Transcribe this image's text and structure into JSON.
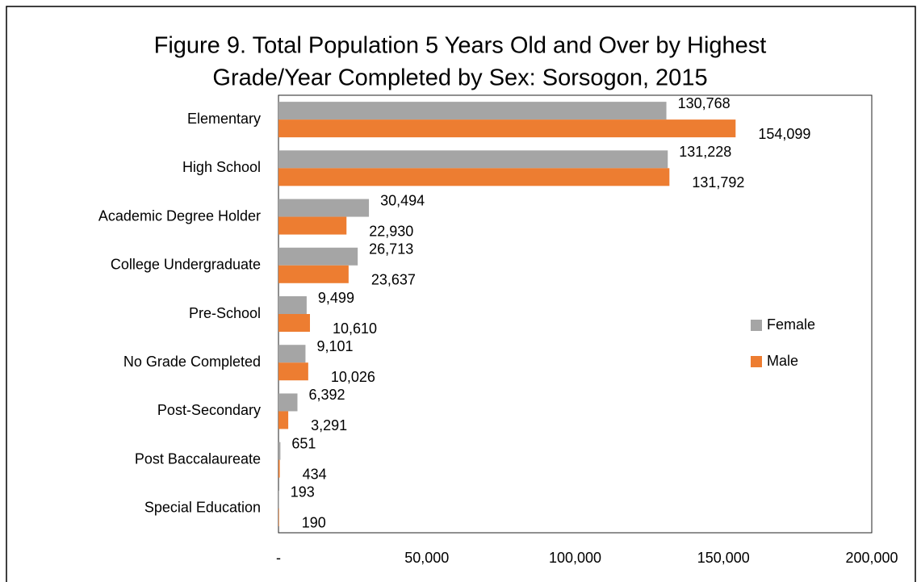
{
  "chart_data": {
    "type": "bar",
    "orientation": "horizontal",
    "title": [
      "Figure 9. Total Population 5 Years Old and Over by Highest",
      "Grade/Year Completed by Sex: Sorsogon, 2015"
    ],
    "categories": [
      "Elementary",
      "High School",
      "Academic Degree Holder",
      "College Undergraduate",
      "Pre-School",
      "No Grade Completed",
      "Post-Secondary",
      "Post Baccalaureate",
      "Special Education"
    ],
    "series": [
      {
        "name": "Female",
        "color": "#a5a5a5",
        "values": [
          130768,
          131228,
          30494,
          26713,
          9499,
          9101,
          6392,
          651,
          193
        ],
        "value_labels": [
          "130,768",
          "131,228",
          "30,494",
          "26,713",
          "9,499",
          "9,101",
          "6,392",
          "651",
          "193"
        ]
      },
      {
        "name": "Male",
        "color": "#ed7d31",
        "values": [
          154099,
          131792,
          22930,
          23637,
          10610,
          10026,
          3291,
          434,
          190
        ],
        "value_labels": [
          "154,099",
          "131,792",
          "22,930",
          "23,637",
          "10,610",
          "10,026",
          "3,291",
          "434",
          "190"
        ]
      }
    ],
    "xlim": [
      0,
      200000
    ],
    "xticks": [
      {
        "value": 0,
        "label": "-"
      },
      {
        "value": 50000,
        "label": "50,000"
      },
      {
        "value": 100000,
        "label": "100,000"
      },
      {
        "value": 150000,
        "label": "150,000"
      },
      {
        "value": 200000,
        "label": "200,000"
      }
    ],
    "legend": "right",
    "grid": false
  }
}
